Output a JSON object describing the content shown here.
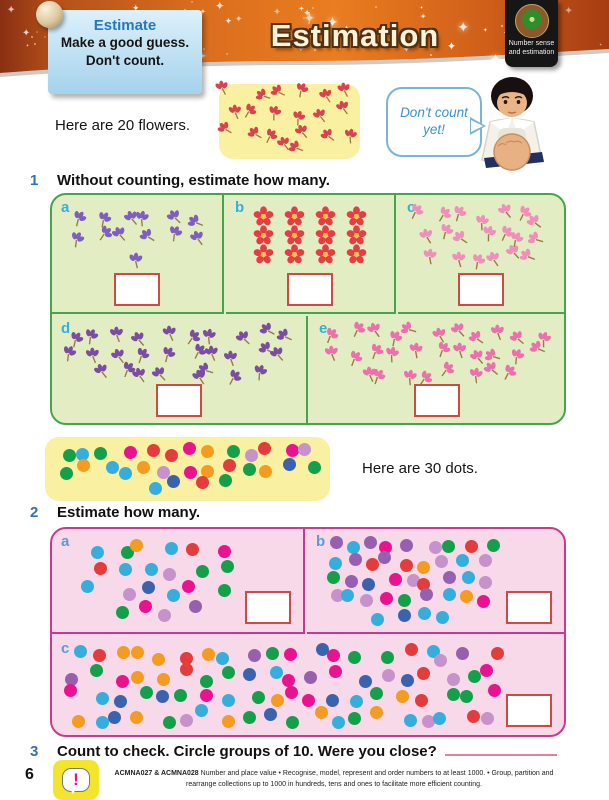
{
  "header": {
    "title": "Estimation",
    "note": {
      "title": "Estimate",
      "line1": "Make a good guess.",
      "line2": "Don't count."
    },
    "badge": {
      "line1": "Number sense",
      "line2": "and estimation"
    }
  },
  "intro_flowers": {
    "caption": "Here are 20 flowers.",
    "count": 20,
    "color": "#d8434f",
    "seed": 7
  },
  "speech_bubble": {
    "line1": "Don't count",
    "line2": "yet!"
  },
  "questions": [
    {
      "number": "1",
      "text": "Without counting, estimate how many."
    },
    {
      "number": "2",
      "text": "Estimate how many."
    },
    {
      "number": "3",
      "text": "Count to check. Circle groups of 10. Were you close?"
    }
  ],
  "flower_panels": [
    {
      "label": "a",
      "count": 13,
      "color": "#7e5ec0",
      "arrangement": "scatter",
      "seed": 11
    },
    {
      "label": "b",
      "count": 12,
      "color": "#e63c42",
      "arrangement": "grid",
      "rows": 3,
      "cols": 4
    },
    {
      "label": "c",
      "count": 20,
      "color": "#f08ebc",
      "arrangement": "scatter",
      "seed": 23
    },
    {
      "label": "d",
      "count": 28,
      "color": "#7a4da3",
      "arrangement": "scatter",
      "seed": 37
    },
    {
      "label": "e",
      "count": 30,
      "color": "#ee6fae",
      "arrangement": "scatter",
      "seed": 49
    }
  ],
  "intro_dots": {
    "caption": "Here are 30 dots.",
    "count": 30,
    "seed": 5
  },
  "dot_panels": [
    {
      "label": "a",
      "count": 22,
      "seed": 61
    },
    {
      "label": "b",
      "count": 40,
      "seed": 71
    },
    {
      "label": "c",
      "count": 80,
      "seed": 83
    }
  ],
  "colors": {
    "dot_palette": [
      "#e23c3c",
      "#3a62ae",
      "#14a04b",
      "#9660ae",
      "#f49b21",
      "#e8148f",
      "#35aede",
      "#c592cc"
    ],
    "green_border": "#44a54c",
    "pink_border": "#c9398f",
    "answer_border": "#cf4a42",
    "header_orange": "#e5781f",
    "yellow_box": "#faf0a2"
  },
  "footer": {
    "page_number": "6",
    "codes": "ACMNA027 & ACMNA028",
    "text": "Number and place value • Recognise, model, represent and order numbers to at least 1000. • Group, partition and rearrange collections up to 1000 in hundreds, tens and ones to facilitate more efficient counting."
  }
}
